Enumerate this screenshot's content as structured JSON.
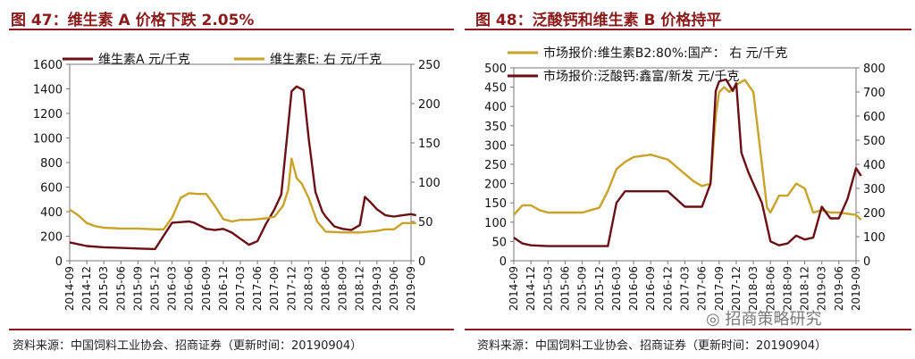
{
  "chart_data": [
    {
      "type": "line",
      "title": "图 47：维生素 A 价格下跌 2.05%",
      "source": "资料来源：中国饲料工业协会、招商证券（更新时间：20190904）",
      "x_ticks": [
        "2014-09",
        "2014-12",
        "2015-03",
        "2015-06",
        "2015-09",
        "2015-12",
        "2016-03",
        "2016-06",
        "2016-09",
        "2016-12",
        "2017-03",
        "2017-06",
        "2017-09",
        "2017-12",
        "2018-03",
        "2018-06",
        "2018-09",
        "2018-12",
        "2019-03",
        "2019-06",
        "2019-09"
      ],
      "y_left": {
        "min": 0,
        "max": 1600,
        "ticks": [
          0,
          200,
          400,
          600,
          800,
          1000,
          1200,
          1400,
          1600
        ]
      },
      "y_right": {
        "min": 0,
        "max": 250,
        "ticks": [
          0,
          50,
          100,
          150,
          200,
          250
        ]
      },
      "legend_position": "top",
      "series": [
        {
          "name": "维生素A 元/千克",
          "axis": "left",
          "color": "#6b0f14",
          "x": [
            0,
            1,
            2,
            3,
            4,
            5,
            6,
            7,
            7.3,
            8,
            8.5,
            9,
            9.5,
            10,
            10.5,
            11,
            11.5,
            12,
            12.4,
            12.8,
            13,
            13.3,
            13.7,
            14,
            14.4,
            14.8,
            15,
            15.5,
            16,
            16.5,
            17,
            17.3,
            17.6,
            18,
            18.5,
            19,
            19.5,
            20,
            20.3
          ],
          "values": [
            150,
            120,
            110,
            105,
            100,
            95,
            310,
            320,
            310,
            260,
            250,
            260,
            230,
            180,
            130,
            160,
            300,
            420,
            540,
            1100,
            1380,
            1420,
            1390,
            1000,
            560,
            400,
            360,
            280,
            260,
            250,
            290,
            520,
            480,
            420,
            370,
            360,
            370,
            380,
            370
          ]
        },
        {
          "name": "维生素E: 右 元/千克",
          "axis": "right",
          "color": "#c9a227",
          "x": [
            0,
            0.5,
            1,
            1.5,
            2,
            3,
            4,
            5,
            5.5,
            6,
            6.5,
            7,
            7.5,
            8,
            8.5,
            9,
            9.5,
            10,
            10.5,
            11,
            11.5,
            12,
            12.5,
            12.8,
            13,
            13.3,
            13.6,
            14,
            14.5,
            15,
            16,
            17,
            18,
            18.5,
            19,
            19.5,
            20,
            20.3
          ],
          "values": [
            65,
            58,
            48,
            44,
            42,
            41,
            41,
            40,
            40,
            55,
            80,
            86,
            85,
            85,
            70,
            53,
            50,
            52,
            52,
            53,
            54,
            56,
            70,
            90,
            130,
            105,
            98,
            80,
            50,
            37,
            36,
            36,
            38,
            40,
            40,
            48,
            48,
            48
          ]
        }
      ]
    },
    {
      "type": "line",
      "title": "图 48：泛酸钙和维生素 B 价格持平",
      "source": "资料来源：中国饲料工业协会、招商证券（更新时间：20190904）",
      "x_ticks": [
        "2014-09",
        "2014-12",
        "2015-03",
        "2015-06",
        "2015-09",
        "2015-12",
        "2016-03",
        "2016-06",
        "2016-09",
        "2016-12",
        "2017-03",
        "2017-06",
        "2017-09",
        "2017-12",
        "2018-03",
        "2018-06",
        "2018-09",
        "2018-12",
        "2019-03",
        "2019-06",
        "2019-09"
      ],
      "y_left": {
        "min": 0,
        "max": 500,
        "ticks": [
          0,
          50,
          100,
          150,
          200,
          250,
          300,
          350,
          400,
          450,
          500
        ]
      },
      "y_right": {
        "min": 0,
        "max": 800,
        "ticks": [
          0,
          100,
          200,
          300,
          400,
          500,
          600,
          700,
          800
        ]
      },
      "legend_position": "top",
      "series": [
        {
          "name": "市场报价:维生素B2:80%:国产： 右 元/千克",
          "axis": "right",
          "color": "#c9a227",
          "x": [
            0,
            0.5,
            1,
            1.5,
            2,
            3,
            4,
            4.5,
            5,
            5.5,
            6,
            6.5,
            7,
            8,
            9,
            10,
            10.5,
            11,
            11.5,
            11.8,
            12,
            12.3,
            12.6,
            13,
            13.5,
            14,
            14.5,
            14.8,
            15,
            15.5,
            16,
            16.5,
            17,
            17.5,
            18,
            18.5,
            19,
            20,
            20.3
          ],
          "values": [
            190,
            230,
            230,
            210,
            200,
            200,
            200,
            210,
            220,
            290,
            380,
            410,
            430,
            440,
            420,
            360,
            330,
            310,
            320,
            600,
            700,
            720,
            700,
            730,
            750,
            700,
            400,
            220,
            200,
            270,
            270,
            320,
            300,
            200,
            210,
            200,
            200,
            190,
            170
          ]
        },
        {
          "name": "市场报价:泛酸钙:鑫富/新发 元/千克",
          "axis": "left",
          "color": "#6b0f14",
          "x": [
            0,
            0.5,
            1,
            2,
            3,
            4,
            5,
            5.5,
            6,
            6.5,
            7,
            8,
            9,
            9.5,
            10,
            10.5,
            11,
            11.5,
            11.8,
            12,
            12.4,
            12.8,
            13,
            13.3,
            13.7,
            14,
            14.5,
            15,
            15.5,
            16,
            16.5,
            17,
            17.5,
            18,
            18.5,
            19,
            19.5,
            20,
            20.3
          ],
          "values": [
            60,
            45,
            40,
            38,
            38,
            38,
            38,
            38,
            150,
            180,
            180,
            180,
            180,
            160,
            140,
            140,
            140,
            200,
            440,
            465,
            470,
            440,
            460,
            280,
            230,
            200,
            150,
            50,
            40,
            45,
            65,
            55,
            60,
            140,
            110,
            110,
            160,
            240,
            220
          ]
        }
      ]
    }
  ],
  "watermark": "招商策略研究",
  "watermark_icon": "wechat-icon"
}
